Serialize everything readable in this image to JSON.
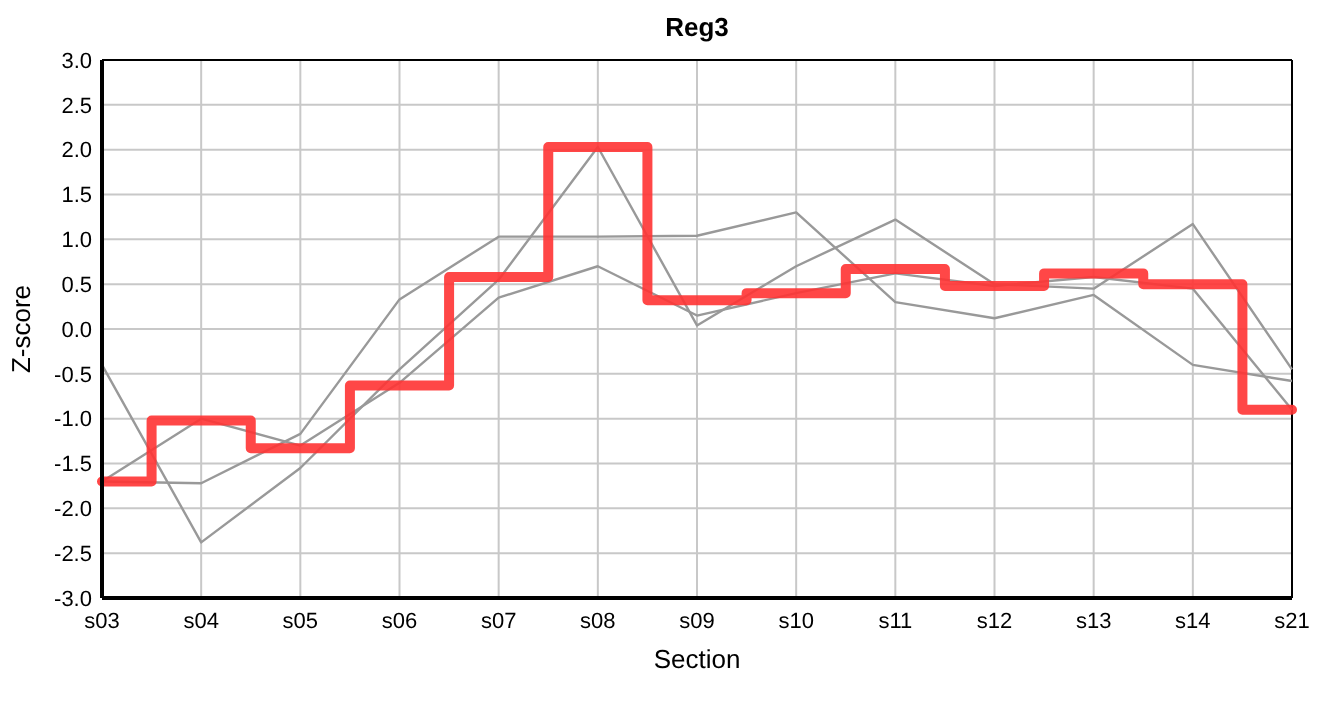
{
  "chart_data": {
    "type": "line",
    "title": "Reg3",
    "xlabel": "Section",
    "ylabel": "Z-score",
    "categories": [
      "s03",
      "s04",
      "s05",
      "s06",
      "s07",
      "s08",
      "s09",
      "s10",
      "s11",
      "s12",
      "s13",
      "s14",
      "s21"
    ],
    "ylim": [
      -3,
      3
    ],
    "yticks": [
      {
        "value": -3,
        "label": "-3.0"
      },
      {
        "value": -2.5,
        "label": "-2.5"
      },
      {
        "value": -2,
        "label": "-2.0"
      },
      {
        "value": -1.5,
        "label": "-1.5"
      },
      {
        "value": -1,
        "label": "-1.0"
      },
      {
        "value": -0.5,
        "label": "-0.5"
      },
      {
        "value": 0,
        "label": "0.0"
      },
      {
        "value": 0.5,
        "label": "0.5"
      },
      {
        "value": 1,
        "label": "1.0"
      },
      {
        "value": 1.5,
        "label": "1.5"
      },
      {
        "value": 2,
        "label": "2.0"
      },
      {
        "value": 2.5,
        "label": "2.5"
      },
      {
        "value": 3,
        "label": "3.0"
      }
    ],
    "grid": true,
    "series": [
      {
        "color": "#999999",
        "values": [
          -0.4,
          -2.38,
          -1.55,
          -0.45,
          0.55,
          2.03,
          0.04,
          0.7,
          1.22,
          0.5,
          0.45,
          1.17,
          -0.45
        ]
      },
      {
        "color": "#999999",
        "values": [
          -1.7,
          -1.72,
          -1.17,
          0.33,
          1.03,
          1.03,
          1.04,
          1.3,
          0.3,
          0.12,
          0.38,
          -0.4,
          -0.58
        ]
      },
      {
        "color": "#999999",
        "values": [
          -1.7,
          -1.0,
          -1.3,
          -0.6,
          0.35,
          0.7,
          0.15,
          0.4,
          0.62,
          0.48,
          0.58,
          0.45,
          -0.9
        ]
      },
      {
        "type": "step",
        "color": "#ff3333",
        "values": [
          -1.7,
          -1.02,
          -1.33,
          -0.63,
          0.58,
          2.03,
          0.32,
          0.4,
          0.67,
          0.48,
          0.62,
          0.5,
          -0.9
        ]
      }
    ]
  }
}
